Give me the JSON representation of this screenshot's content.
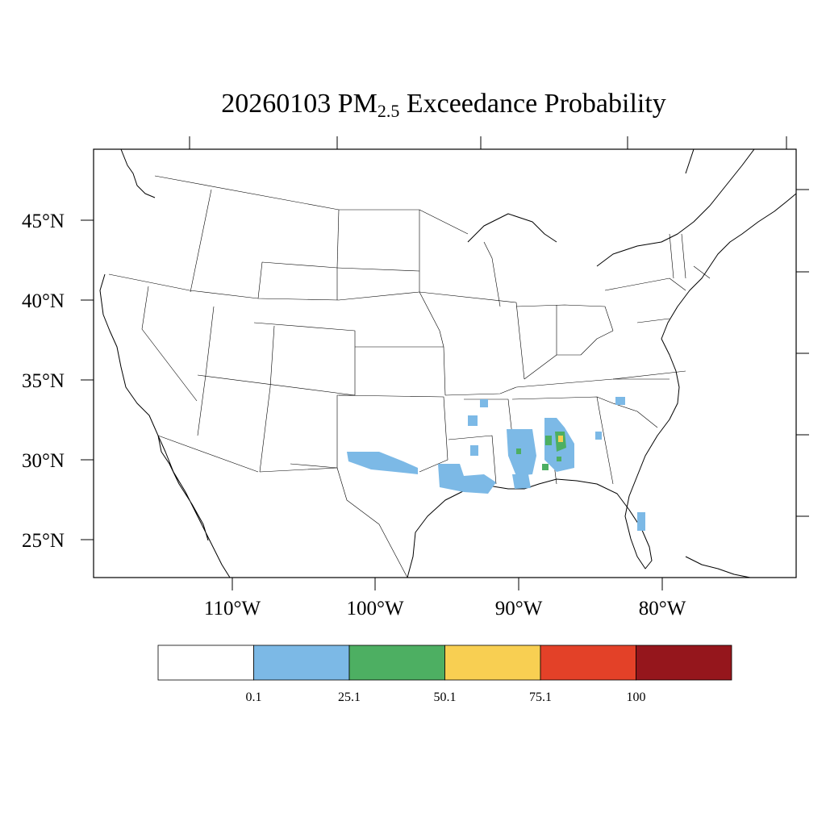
{
  "title": {
    "date": "20260103",
    "pm": "PM",
    "subscript": "2.5",
    "rest": "Exceedance Probability"
  },
  "lat_labels": [
    "45°N",
    "40°N",
    "35°N",
    "30°N",
    "25°N"
  ],
  "lon_labels": [
    "110°W",
    "100°W",
    "90°W",
    "80°W"
  ],
  "legend": {
    "colors": [
      "#ffffff",
      "#7cb9e6",
      "#4daf62",
      "#f8cf52",
      "#e34128",
      "#95161c"
    ],
    "labels": [
      "0.1",
      "25.1",
      "50.1",
      "75.1",
      "100"
    ]
  },
  "colors": {
    "outline": "#000000",
    "low": "#7cb9e6",
    "mid": "#4daf62",
    "high": "#f8cf52"
  }
}
